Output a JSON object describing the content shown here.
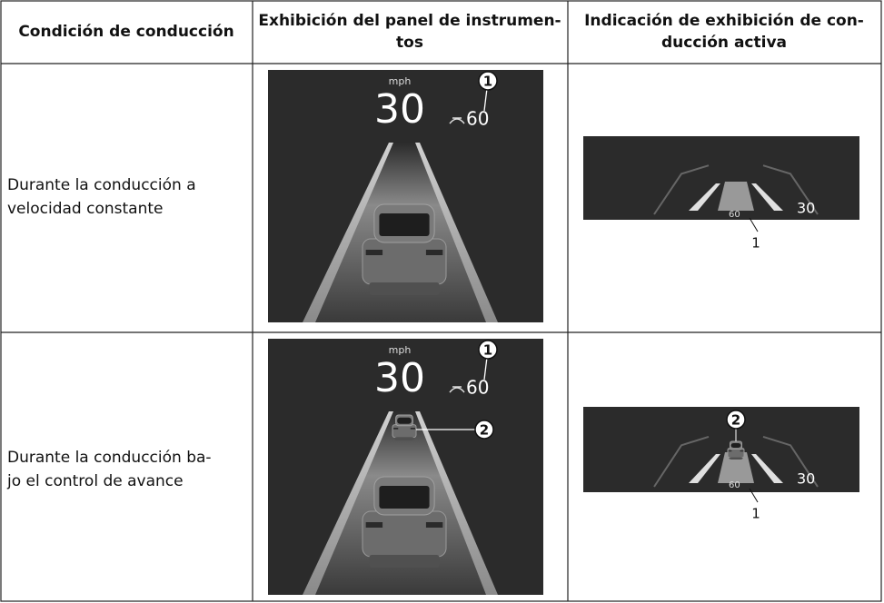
{
  "table": {
    "header": [
      [
        "Condición de conducción"
      ],
      [
        "Exhibición del panel de instrumen-",
        "tos"
      ],
      [
        "Indicación de exhibición de con-",
        "ducción activa"
      ]
    ],
    "rows": [
      {
        "condition": [
          "Durante la conducción a",
          "velocidad constante"
        ],
        "panel": {
          "unit": "mph",
          "speed": 30,
          "set_speed": 60,
          "callouts": [
            "1"
          ]
        },
        "hud": {
          "set_speed": 60,
          "speed": 30,
          "callouts": [
            "1"
          ]
        }
      },
      {
        "condition": [
          "Durante la conducción ba-",
          "jo el control de avance"
        ],
        "panel": {
          "unit": "mph",
          "speed": 30,
          "set_speed": 60,
          "callouts": [
            "1",
            "2"
          ]
        },
        "hud": {
          "set_speed": 60,
          "speed": 30,
          "callouts": [
            "1",
            "2"
          ]
        }
      }
    ]
  }
}
